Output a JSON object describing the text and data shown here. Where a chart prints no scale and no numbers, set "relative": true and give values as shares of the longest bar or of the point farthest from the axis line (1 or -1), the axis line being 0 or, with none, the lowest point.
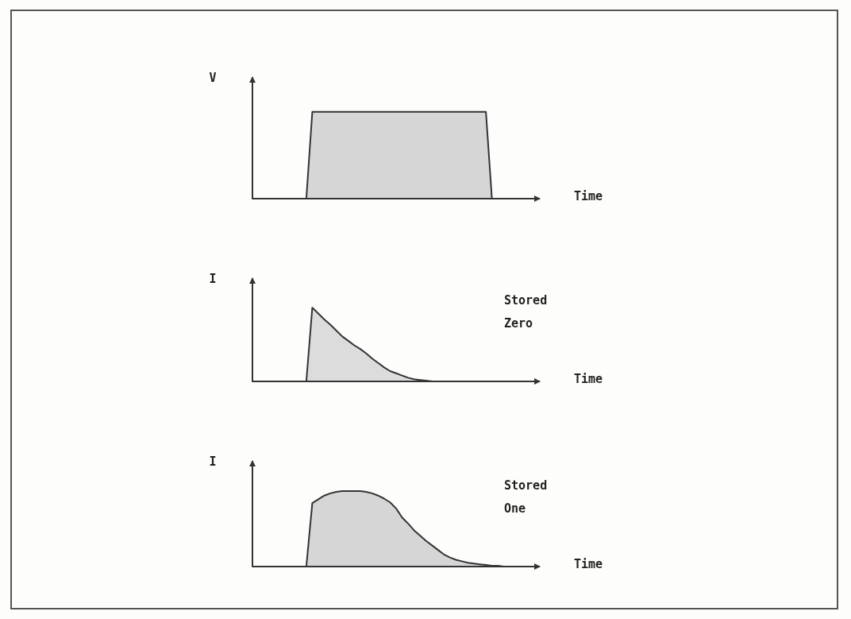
{
  "chart_data": [
    {
      "type": "area",
      "relative": true,
      "ylabel": "V",
      "xlabel": "Time",
      "categories": [
        null,
        null,
        null,
        null,
        null,
        null,
        null,
        null,
        null,
        null,
        null,
        null,
        null,
        null,
        null,
        null,
        null,
        null,
        null,
        null,
        null,
        null,
        null,
        null,
        null,
        null,
        null,
        null,
        null,
        null,
        null,
        null,
        null,
        null,
        null,
        null,
        null,
        null,
        null,
        null,
        null,
        null,
        null,
        null,
        null,
        null,
        null,
        null,
        null
      ],
      "series": [
        {
          "color": "#d6d6d6",
          "values": [
            0,
            0,
            0,
            0,
            0,
            0,
            0,
            0,
            0,
            0,
            1,
            1,
            1,
            1,
            1,
            1,
            1,
            1,
            1,
            1,
            1,
            1,
            1,
            1,
            1,
            1,
            1,
            1,
            1,
            1,
            1,
            1,
            1,
            1,
            1,
            1,
            1,
            1,
            1,
            1,
            0,
            0,
            0,
            0,
            0,
            0,
            0,
            0,
            0
          ]
        }
      ]
    },
    {
      "type": "area",
      "relative": true,
      "ylabel": "I",
      "xlabel": "Time",
      "annotations": [
        "Stored Zero"
      ],
      "categories": [
        null,
        null,
        null,
        null,
        null,
        null,
        null,
        null,
        null,
        null,
        null,
        null,
        null,
        null,
        null,
        null,
        null,
        null,
        null,
        null,
        null,
        null,
        null,
        null,
        null,
        null,
        null,
        null,
        null,
        null,
        null,
        null,
        null,
        null,
        null,
        null,
        null,
        null,
        null,
        null,
        null,
        null,
        null,
        null,
        null,
        null,
        null,
        null,
        null
      ],
      "series": [
        {
          "color": "#dcdcdc",
          "values": [
            0,
            0,
            0,
            0,
            0,
            0,
            0,
            0,
            0,
            0,
            1,
            0.92,
            0.84,
            0.77,
            0.69,
            0.61,
            0.55,
            0.49,
            0.44,
            0.38,
            0.31,
            0.25,
            0.19,
            0.14,
            0.11,
            0.08,
            0.05,
            0.03,
            0.02,
            0.01,
            0,
            0,
            0,
            0,
            0,
            0,
            0,
            0,
            0,
            0,
            0,
            0,
            0,
            0,
            0,
            0,
            0,
            0,
            0
          ]
        }
      ]
    },
    {
      "type": "area",
      "relative": true,
      "ylabel": "I",
      "xlabel": "Time",
      "annotations": [
        "Stored One"
      ],
      "categories": [
        null,
        null,
        null,
        null,
        null,
        null,
        null,
        null,
        null,
        null,
        null,
        null,
        null,
        null,
        null,
        null,
        null,
        null,
        null,
        null,
        null,
        null,
        null,
        null,
        null,
        null,
        null,
        null,
        null,
        null,
        null,
        null,
        null,
        null,
        null,
        null,
        null,
        null,
        null,
        null,
        null,
        null,
        null,
        null,
        null,
        null,
        null,
        null,
        null
      ],
      "series": [
        {
          "color": "#d6d6d6",
          "values": [
            0,
            0,
            0,
            0,
            0,
            0,
            0,
            0,
            0,
            0,
            0.84,
            0.89,
            0.94,
            0.97,
            0.99,
            1,
            1,
            1,
            1,
            0.99,
            0.97,
            0.94,
            0.9,
            0.85,
            0.77,
            0.65,
            0.57,
            0.48,
            0.41,
            0.34,
            0.28,
            0.22,
            0.16,
            0.12,
            0.09,
            0.07,
            0.05,
            0.04,
            0.03,
            0.02,
            0.01,
            0.01,
            0,
            0,
            0,
            0,
            0,
            0,
            0
          ]
        }
      ]
    }
  ]
}
